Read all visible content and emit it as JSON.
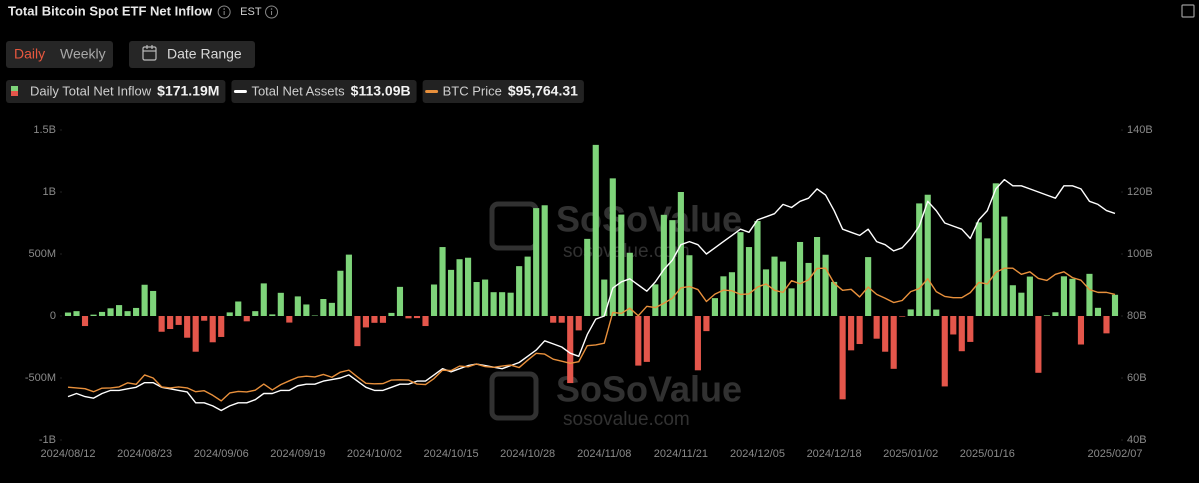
{
  "chart_data": {
    "type": "combo",
    "title": "Total Bitcoin Spot ETF Net Inflow",
    "timezone": "EST",
    "controls": {
      "period": [
        "Daily",
        "Weekly"
      ],
      "date_range": "Date Range"
    },
    "watermark": {
      "brand": "SoSoValue",
      "site": "sosovalue.com"
    },
    "categories": [
      "2024/08/12",
      null,
      null,
      null,
      null,
      null,
      null,
      null,
      null,
      "2024/08/23",
      null,
      null,
      null,
      null,
      null,
      null,
      null,
      null,
      "2024/09/06",
      null,
      null,
      null,
      null,
      null,
      null,
      null,
      null,
      "2024/09/19",
      null,
      null,
      null,
      null,
      null,
      null,
      null,
      null,
      "2024/10/02",
      null,
      null,
      null,
      null,
      null,
      null,
      null,
      null,
      "2024/10/15",
      null,
      null,
      null,
      null,
      null,
      null,
      null,
      null,
      "2024/10/28",
      null,
      null,
      null,
      null,
      null,
      null,
      null,
      null,
      "2024/11/08",
      null,
      null,
      null,
      null,
      null,
      null,
      null,
      null,
      "2024/11/21",
      null,
      null,
      null,
      null,
      null,
      null,
      null,
      null,
      "2024/12/05",
      null,
      null,
      null,
      null,
      null,
      null,
      null,
      null,
      "2024/12/18",
      null,
      null,
      null,
      null,
      null,
      null,
      null,
      null,
      "2025/01/02",
      null,
      null,
      null,
      null,
      null,
      null,
      null,
      null,
      "2025/01/16",
      null,
      null,
      null,
      null,
      null,
      null,
      null,
      null,
      null,
      null,
      null,
      null,
      null,
      null,
      "2025/02/07"
    ],
    "ylim": [
      -1000,
      1500
    ],
    "yticks": [
      {
        "value": -1000,
        "label": "-1B"
      },
      {
        "value": -500,
        "label": "-500M"
      },
      0,
      {
        "value": 500,
        "label": "500M"
      },
      {
        "value": 1000,
        "label": "1B"
      },
      {
        "value": 1500,
        "label": "1.5B"
      }
    ],
    "y2lim": [
      40,
      140
    ],
    "y2ticks": [
      {
        "value": 40,
        "label": "40B"
      },
      {
        "value": 60,
        "label": "60B"
      },
      {
        "value": 80,
        "label": "80B"
      },
      {
        "value": 100,
        "label": "100B"
      },
      {
        "value": 120,
        "label": "120B"
      },
      {
        "value": 140,
        "label": "140B"
      }
    ],
    "y3lim": [
      38500,
      160500
    ],
    "grid": false,
    "series": [
      {
        "name": "Daily Total Net Inflow",
        "type": "bar",
        "color": "#7ed47a",
        "negative_color": "#e4564b",
        "legend_value": "$171.19M",
        "values": [
          28,
          39,
          -81,
          11,
          33,
          62,
          88,
          39,
          65,
          252,
          202,
          -127,
          -105,
          -72,
          -175,
          -288,
          -38,
          -212,
          -169,
          29,
          117,
          -43,
          39,
          263,
          13,
          187,
          -53,
          158,
          93,
          4,
          137,
          106,
          365,
          495,
          -243,
          -92,
          -55,
          -55,
          25,
          235,
          -19,
          -17,
          -81,
          254,
          556,
          372,
          458,
          470,
          274,
          294,
          192,
          192,
          188,
          402,
          479,
          870,
          893,
          -54,
          -54,
          -541,
          -116,
          622,
          1380,
          294,
          1110,
          818,
          510,
          -400,
          -370,
          255,
          816,
          773,
          1000,
          490,
          -438,
          -122,
          144,
          320,
          353,
          676,
          556,
          766,
          376,
          479,
          439,
          223,
          597,
          428,
          637,
          494,
          275,
          -672,
          -277,
          -226,
          475,
          -183,
          -288,
          -426,
          -5,
          53,
          908,
          978,
          52,
          -568,
          -149,
          -284,
          -209,
          755,
          626,
          1070,
          802,
          248,
          188,
          318,
          -458,
          5,
          30,
          320,
          300,
          -230,
          340,
          66,
          -140,
          171.19
        ]
      },
      {
        "name": "Total Net Assets",
        "type": "line",
        "axis": "y2",
        "color": "#ffffff",
        "legend_value": "$113.09B",
        "values": [
          54,
          55,
          54,
          53.5,
          55,
          56,
          56,
          56.5,
          57,
          58.5,
          58.5,
          57,
          56.5,
          56,
          55.5,
          52,
          52,
          51,
          49.5,
          51,
          52,
          52,
          53,
          55,
          55,
          56,
          56,
          57.5,
          58,
          58,
          59,
          59.5,
          60,
          61,
          59,
          57,
          56,
          56,
          57,
          58,
          58,
          59,
          59,
          61,
          63,
          62,
          63,
          64,
          64.5,
          64,
          63.5,
          63,
          64,
          65,
          67,
          69,
          72,
          71,
          70,
          68,
          67,
          74,
          79,
          80,
          89,
          91,
          92,
          90,
          88,
          91,
          95,
          98,
          103,
          104,
          103,
          100,
          102,
          104,
          106,
          108,
          107,
          111,
          112,
          113,
          116,
          115,
          117,
          118,
          121,
          119,
          114,
          108,
          107,
          106,
          108,
          104,
          103,
          101,
          102,
          105,
          109,
          117,
          114,
          110,
          109,
          108,
          105,
          111,
          114,
          121,
          124,
          122,
          122,
          121,
          120,
          119,
          118,
          122,
          122,
          121,
          117,
          116,
          114,
          113.09
        ]
      },
      {
        "name": "BTC Price",
        "type": "line",
        "axis": "y3",
        "color": "#e8903c",
        "legend_value": "$95,764.31",
        "values": [
          59300,
          59000,
          58700,
          57500,
          58900,
          59000,
          59400,
          61000,
          60400,
          64100,
          62900,
          59400,
          59000,
          59400,
          59000,
          57500,
          57900,
          56100,
          53900,
          57000,
          57600,
          57400,
          58100,
          60500,
          58200,
          60300,
          61800,
          63200,
          63600,
          63300,
          64300,
          63200,
          65200,
          66000,
          63300,
          60800,
          60600,
          60700,
          62100,
          62200,
          62100,
          60500,
          60300,
          62700,
          66000,
          65800,
          67600,
          67300,
          68400,
          67400,
          67100,
          67600,
          68000,
          67000,
          69900,
          72600,
          72300,
          70300,
          69500,
          68700,
          69300,
          75600,
          75900,
          76600,
          88700,
          88300,
          90400,
          87400,
          91100,
          90600,
          92300,
          94300,
          98400,
          98900,
          97700,
          93000,
          95900,
          97500,
          97200,
          95800,
          96000,
          98700,
          99900,
          97400,
          96600,
          101200,
          100000,
          101500,
          106000,
          106100,
          100200,
          97400,
          97800,
          94800,
          98700,
          95800,
          94300,
          92600,
          93400,
          96900,
          98100,
          102000,
          96900,
          95000,
          94500,
          94500,
          96500,
          100500,
          99900,
          104500,
          106100,
          106100,
          103700,
          104700,
          102100,
          101300,
          103700,
          104700,
          102400,
          101400,
          97700,
          96600,
          96600,
          95764.31
        ]
      }
    ]
  }
}
